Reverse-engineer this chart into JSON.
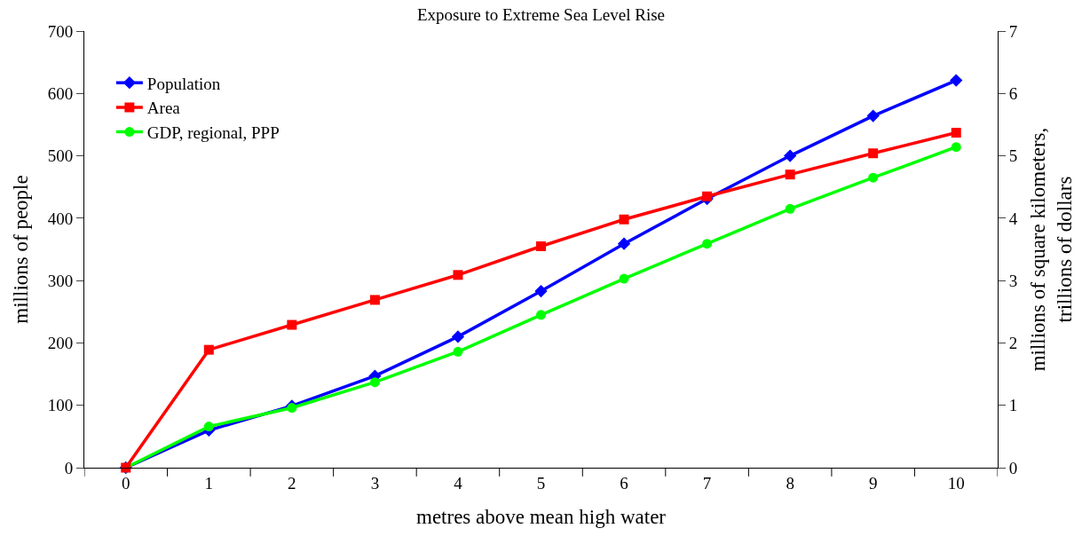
{
  "chart_data": {
    "type": "line",
    "title": "Exposure to Extreme Sea Level Rise",
    "xlabel": "metres above mean high water",
    "ylabel": "millions of people",
    "y2label": "millions of square kilometers,\ntrillions of dollars",
    "categories": [
      "0",
      "1",
      "2",
      "3",
      "4",
      "5",
      "6",
      "7",
      "8",
      "9",
      "10"
    ],
    "series": [
      {
        "name": "Population",
        "color": "#0000ff",
        "marker": "diamond",
        "values": [
          0,
          60,
          99,
          147,
          210,
          283,
          359,
          431,
          500,
          564,
          621
        ]
      },
      {
        "name": "Area",
        "color": "#ff0000",
        "marker": "square",
        "axis": "y2",
        "values": [
          0,
          1.89,
          2.29,
          2.69,
          3.09,
          3.55,
          3.98,
          4.35,
          4.7,
          5.04,
          5.37
        ]
      },
      {
        "name": "GDP, regional, PPP",
        "color": "#00ff00",
        "marker": "circle",
        "axis": "y2",
        "values": [
          0,
          0.66,
          0.96,
          1.37,
          1.86,
          2.45,
          3.03,
          3.59,
          4.15,
          4.65,
          5.14
        ]
      }
    ],
    "ylim": [
      0,
      700
    ],
    "yticks": [
      0,
      100,
      200,
      300,
      400,
      500,
      600,
      700
    ],
    "y2lim": [
      0,
      7
    ],
    "y2ticks": [
      0,
      1,
      2,
      3,
      4,
      5,
      6,
      7
    ],
    "grid": false,
    "legend": "top left",
    "line_style": "solid"
  }
}
